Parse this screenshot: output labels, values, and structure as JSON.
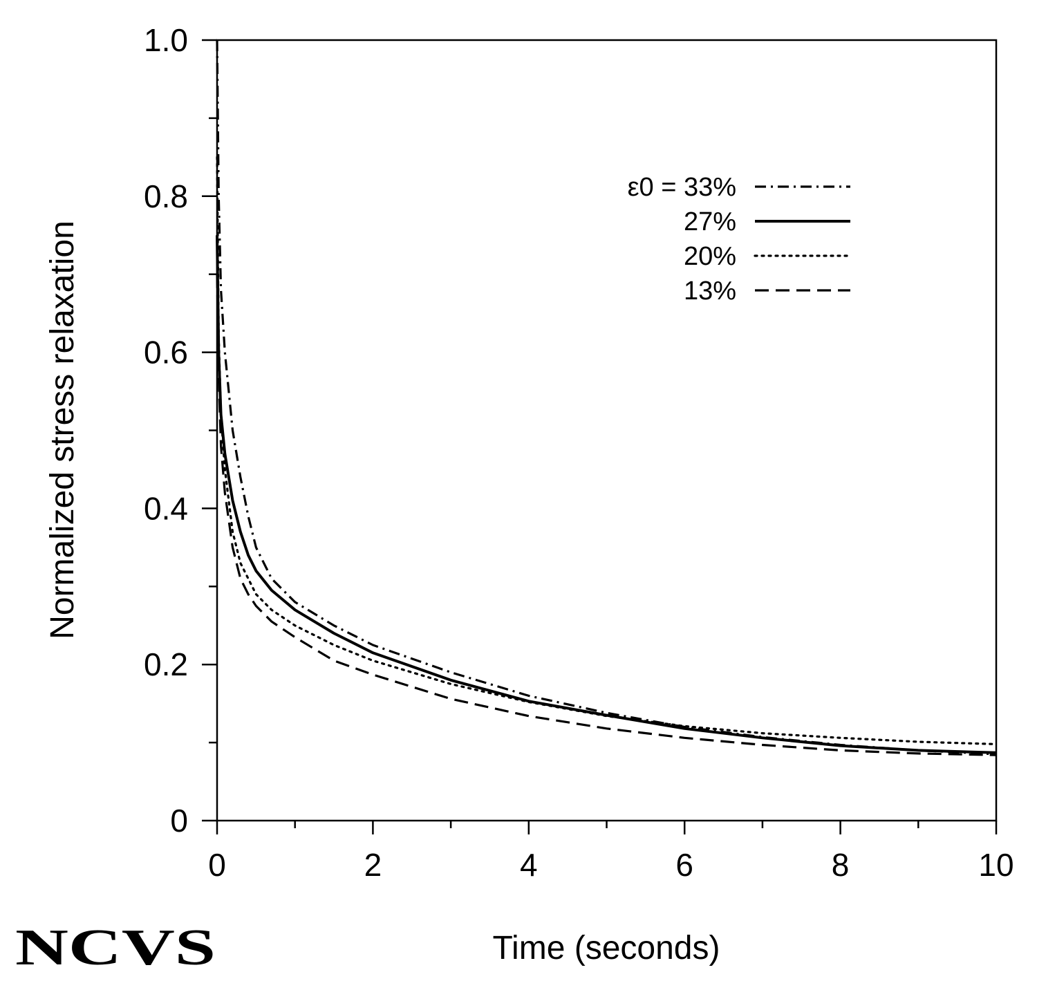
{
  "logo_text": "NCVS",
  "chart_data": {
    "type": "line",
    "title": "",
    "xlabel": "Time (seconds)",
    "ylabel": "Normalized stress relaxation",
    "xlim": [
      0,
      10
    ],
    "ylim": [
      0,
      1.0
    ],
    "x_ticks": [
      0,
      2,
      4,
      6,
      8,
      10
    ],
    "x_tick_labels": [
      "0",
      "2",
      "4",
      "6",
      "8",
      "10"
    ],
    "y_ticks": [
      0,
      0.2,
      0.4,
      0.6,
      0.8,
      1.0
    ],
    "y_tick_labels": [
      "0",
      "0.2",
      "0.4",
      "0.6",
      "0.8",
      "1.0"
    ],
    "x_minor_step": 1,
    "y_minor_step": 0.1,
    "grid": false,
    "legend_position": "top-right",
    "legend_prefix": "ε0 = ",
    "series": [
      {
        "name": "33%",
        "style": "dashdot",
        "color": "#000000",
        "x": [
          0,
          0.02,
          0.05,
          0.1,
          0.2,
          0.3,
          0.4,
          0.5,
          0.7,
          1.0,
          1.5,
          2.0,
          3.0,
          4.0,
          5.0,
          6.0,
          7.0,
          8.0,
          9.0,
          10.0
        ],
        "y": [
          1.0,
          0.8,
          0.68,
          0.6,
          0.5,
          0.44,
          0.39,
          0.35,
          0.31,
          0.28,
          0.25,
          0.225,
          0.19,
          0.16,
          0.138,
          0.12,
          0.107,
          0.097,
          0.09,
          0.085
        ]
      },
      {
        "name": "27%",
        "style": "solid",
        "color": "#000000",
        "x": [
          0,
          0.02,
          0.05,
          0.1,
          0.2,
          0.3,
          0.4,
          0.5,
          0.7,
          1.0,
          1.5,
          2.0,
          3.0,
          4.0,
          5.0,
          6.0,
          7.0,
          8.0,
          9.0,
          10.0
        ],
        "y": [
          0.75,
          0.6,
          0.52,
          0.47,
          0.41,
          0.37,
          0.34,
          0.32,
          0.295,
          0.27,
          0.24,
          0.215,
          0.18,
          0.153,
          0.135,
          0.118,
          0.106,
          0.096,
          0.09,
          0.087
        ]
      },
      {
        "name": "20%",
        "style": "dotted",
        "color": "#000000",
        "x": [
          0,
          0.02,
          0.05,
          0.1,
          0.2,
          0.3,
          0.4,
          0.5,
          0.7,
          1.0,
          1.5,
          2.0,
          3.0,
          4.0,
          5.0,
          6.0,
          7.0,
          8.0,
          9.0,
          10.0
        ],
        "y": [
          0.85,
          0.62,
          0.52,
          0.45,
          0.37,
          0.33,
          0.31,
          0.29,
          0.27,
          0.25,
          0.225,
          0.205,
          0.175,
          0.152,
          0.134,
          0.121,
          0.112,
          0.106,
          0.101,
          0.098
        ]
      },
      {
        "name": "13%",
        "style": "dashed",
        "color": "#000000",
        "x": [
          0,
          0.02,
          0.05,
          0.1,
          0.2,
          0.3,
          0.4,
          0.5,
          0.7,
          1.0,
          1.5,
          2.0,
          3.0,
          4.0,
          5.0,
          6.0,
          7.0,
          8.0,
          9.0,
          10.0
        ],
        "y": [
          0.7,
          0.57,
          0.48,
          0.42,
          0.35,
          0.31,
          0.29,
          0.275,
          0.255,
          0.235,
          0.205,
          0.187,
          0.156,
          0.134,
          0.118,
          0.106,
          0.097,
          0.09,
          0.086,
          0.084
        ]
      }
    ]
  }
}
